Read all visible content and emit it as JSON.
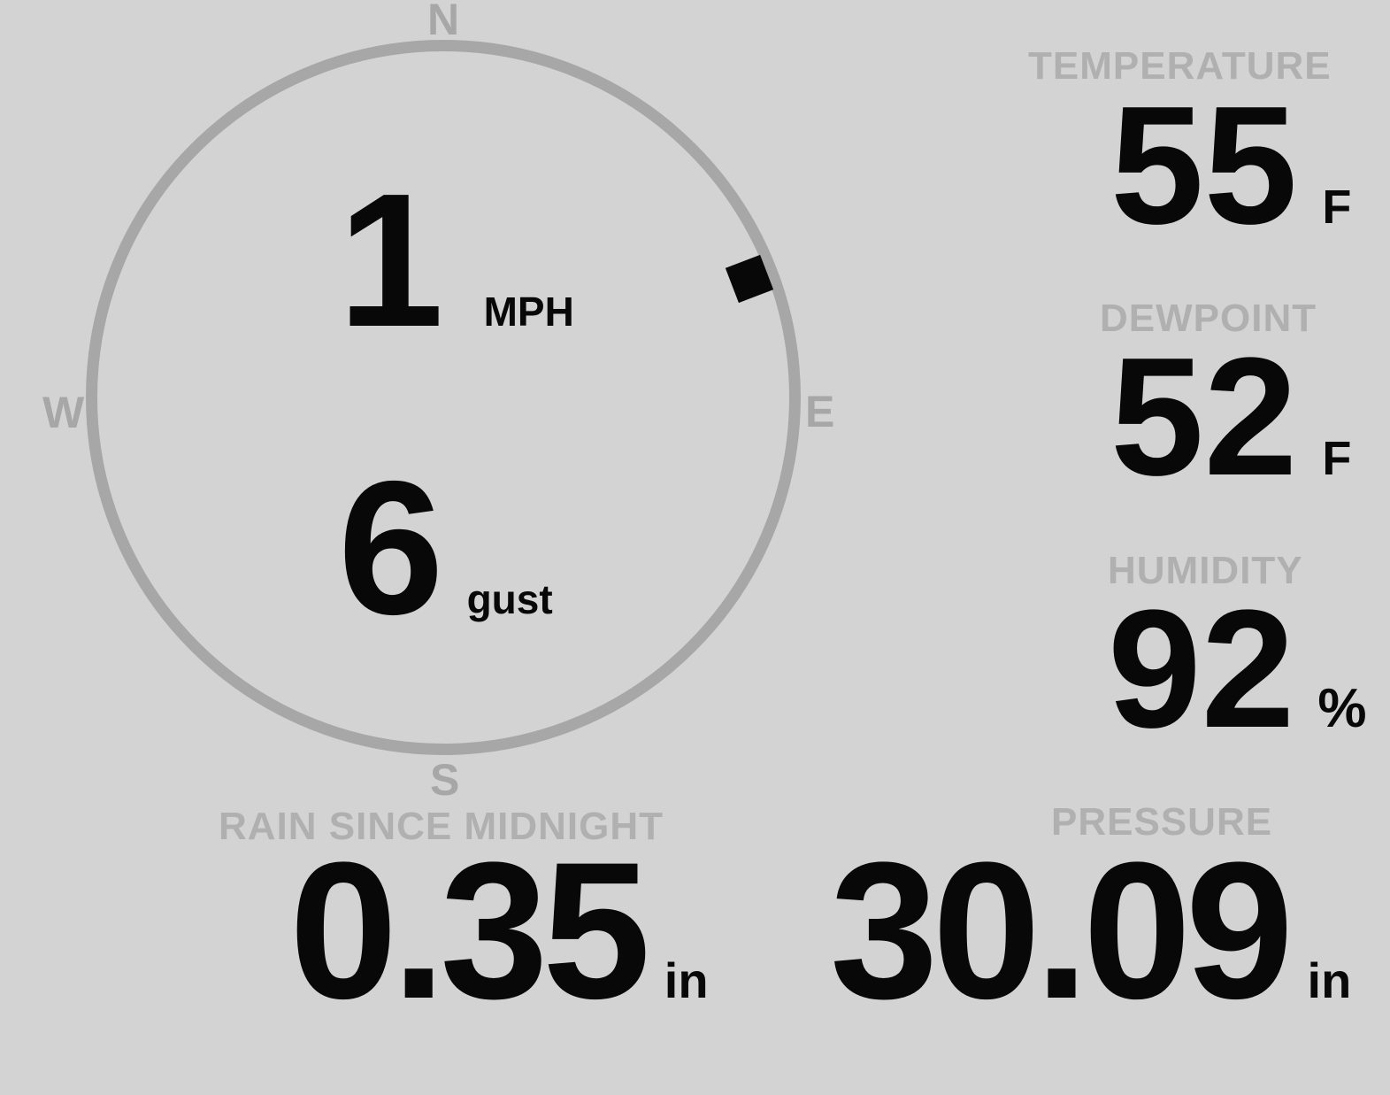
{
  "colors": {
    "background": "#d3d3d3",
    "compass": "#a7a7a7",
    "label": "#b0b0b0",
    "value": "#080808"
  },
  "compass": {
    "north": "N",
    "south": "S",
    "east": "E",
    "west": "W",
    "wind_speed": "1",
    "wind_speed_unit": "MPH",
    "wind_gust": "6",
    "wind_gust_label": "gust",
    "wind_direction_deg": 69
  },
  "metrics": {
    "temperature": {
      "label": "TEMPERATURE",
      "value": "55",
      "unit": "F"
    },
    "dewpoint": {
      "label": "DEWPOINT",
      "value": "52",
      "unit": "F"
    },
    "humidity": {
      "label": "HUMIDITY",
      "value": "92",
      "unit": "%"
    },
    "rain": {
      "label": "RAIN SINCE MIDNIGHT",
      "value": "0.35",
      "unit": "in"
    },
    "pressure": {
      "label": "PRESSURE",
      "value": "30.09",
      "unit": "in"
    }
  }
}
